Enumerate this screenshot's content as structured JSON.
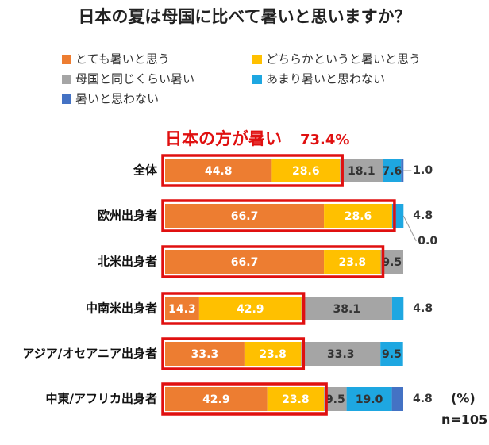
{
  "chart_data": {
    "type": "bar",
    "orientation": "horizontal",
    "stacked": true,
    "title": "日本の夏は母国に比べて暑いと思いますか？",
    "annotations": [
      "日本の方が暑い",
      "73.4%"
    ],
    "unit_label": "(%)",
    "note": "n=105",
    "categories": [
      "全体",
      "欧州出身者",
      "北米出身者",
      "中南米出身者",
      "アジア/オセアニア出身者",
      "中東/アフリカ出身者"
    ],
    "xlim": [
      0,
      100
    ],
    "series": [
      {
        "name": "とても暑いと思う",
        "color": "#ED7D31",
        "values": [
          44.8,
          66.7,
          66.7,
          14.3,
          33.3,
          42.9
        ]
      },
      {
        "name": "どちらかというと暑いと思う",
        "color": "#FFC000",
        "values": [
          28.6,
          28.6,
          23.8,
          42.9,
          23.8,
          23.8
        ]
      },
      {
        "name": "母国と同じくらい暑い",
        "color": "#A5A5A5",
        "values": [
          18.1,
          null,
          9.5,
          38.1,
          33.3,
          9.5
        ]
      },
      {
        "name": "あまり暑いと思わない",
        "color": "#1EA7E1",
        "values": [
          7.6,
          4.8,
          null,
          4.8,
          9.5,
          19
        ],
        "value_labels": [
          "7.6",
          "4.8",
          null,
          "4.8",
          "9.5",
          "19.0"
        ]
      },
      {
        "name": "暑いと思わない",
        "color": "#4472C4",
        "values": [
          1,
          0,
          null,
          null,
          null,
          4.8
        ],
        "value_labels": [
          "1.0",
          "0.0",
          null,
          null,
          null,
          "4.8"
        ]
      }
    ]
  }
}
